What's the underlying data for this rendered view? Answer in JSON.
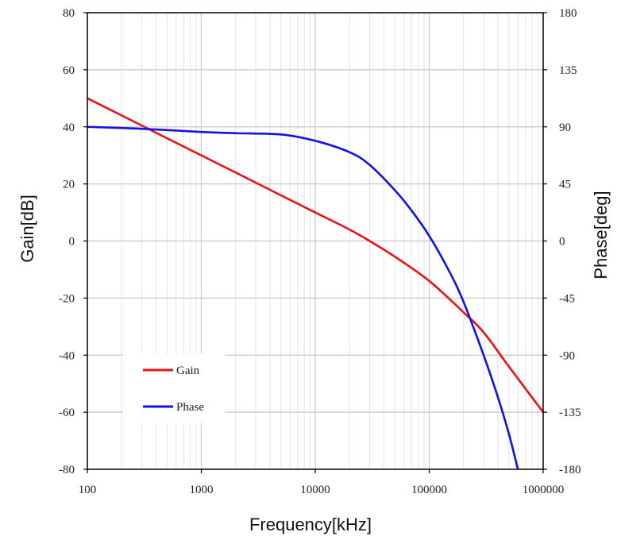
{
  "chart_data": {
    "type": "line",
    "xlabel": "Frequency[kHz]",
    "ylabel_left": "Gain[dB]",
    "ylabel_right": "Phase[deg]",
    "x_scale": "log",
    "xlim": [
      100,
      1000000
    ],
    "ylim_left": [
      -80,
      80
    ],
    "ylim_right": [
      -180,
      180
    ],
    "x_ticks": [
      "100",
      "1000",
      "10000",
      "100000",
      "1000000"
    ],
    "y_ticks_left": [
      "80",
      "60",
      "40",
      "20",
      "0",
      "-20",
      "-40",
      "-60",
      "-80"
    ],
    "y_ticks_right": [
      "180",
      "135",
      "90",
      "45",
      "0",
      "-45",
      "-90",
      "-135",
      "-180"
    ],
    "grid": true,
    "legend_position": "bottom-left",
    "series": [
      {
        "name": "Gain",
        "axis": "left",
        "color": "#ee1111",
        "x": [
          100,
          200,
          500,
          1000,
          2000,
          5000,
          10000,
          20000,
          30000,
          50000,
          100000,
          200000,
          300000,
          500000,
          1000000
        ],
        "y": [
          50,
          44,
          36,
          30,
          24,
          16,
          10,
          4,
          0,
          -5.5,
          -14,
          -25,
          -32,
          -44,
          -60
        ]
      },
      {
        "name": "Phase",
        "axis": "right",
        "color": "#1111ee",
        "x": [
          100,
          300,
          1000,
          2000,
          5000,
          10000,
          20000,
          30000,
          50000,
          70000,
          100000,
          150000,
          200000,
          300000,
          400000,
          500000,
          600000
        ],
        "y": [
          90,
          88.5,
          86,
          85,
          84,
          79,
          70,
          60,
          40,
          24,
          4,
          -24,
          -48,
          -90,
          -123,
          -152,
          -180
        ]
      }
    ]
  }
}
